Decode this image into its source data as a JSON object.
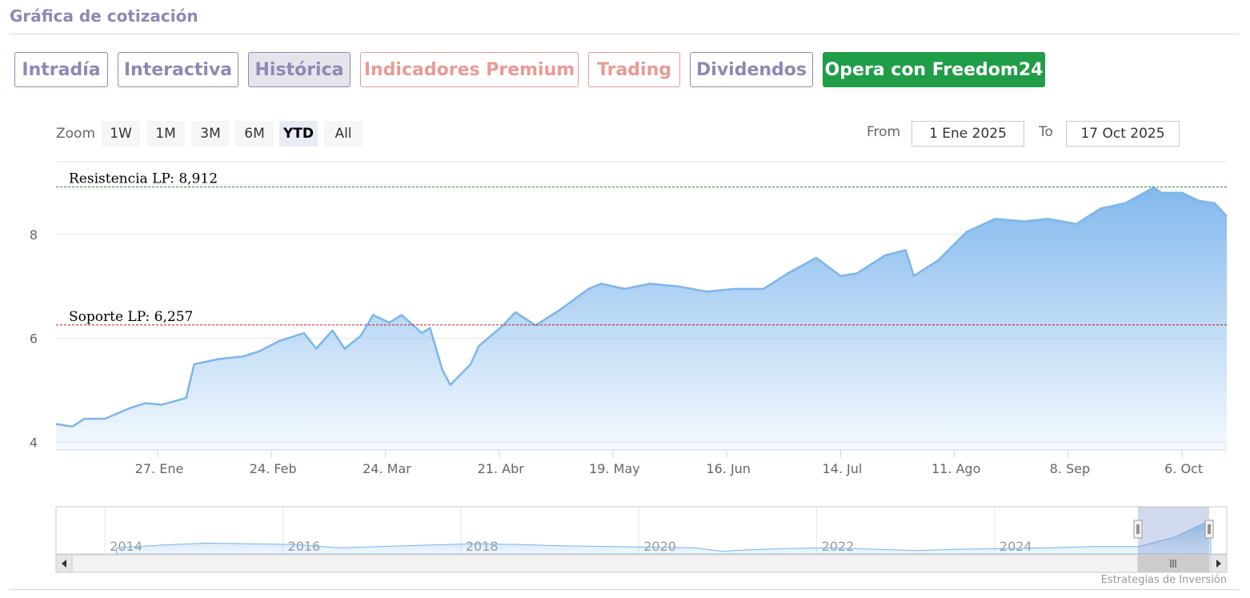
{
  "title": "Gráfica de cotización",
  "tabs": [
    {
      "label": "Intradía",
      "style": "purple"
    },
    {
      "label": "Interactiva",
      "style": "purple"
    },
    {
      "label": "Histórica",
      "style": "active"
    },
    {
      "label": "Indicadores Premium",
      "style": "pink"
    },
    {
      "label": "Trading",
      "style": "pink"
    },
    {
      "label": "Dividendos",
      "style": "purple"
    },
    {
      "label": "Opera con Freedom24",
      "style": "green"
    }
  ],
  "zoom": {
    "label": "Zoom",
    "buttons": [
      "1W",
      "1M",
      "3M",
      "6M",
      "YTD",
      "All"
    ],
    "selected": "YTD"
  },
  "range": {
    "from_label": "From",
    "from_value": "1 Ene 2025",
    "to_label": "To",
    "to_value": "17 Oct 2025"
  },
  "credit": "Estrategias de Inversión",
  "colors": {
    "line": "#7cb5ec",
    "resistance": "#2e7d32",
    "support": "#b71c1c"
  },
  "chart_data": {
    "type": "area",
    "title": "",
    "xlabel": "",
    "ylabel": "",
    "ylim": [
      3.85,
      9.4
    ],
    "y_ticks": [
      4,
      6,
      8
    ],
    "x_tick_labels": [
      "27. Ene",
      "24. Feb",
      "24. Mar",
      "21. Abr",
      "19. May",
      "16. Jun",
      "14. Jul",
      "11. Ago",
      "8. Sep",
      "6. Oct"
    ],
    "x_tick_dates": [
      "2025-01-27",
      "2025-02-24",
      "2025-03-24",
      "2025-04-21",
      "2025-05-19",
      "2025-06-16",
      "2025-07-14",
      "2025-08-11",
      "2025-09-08",
      "2025-10-06"
    ],
    "x_range": [
      "2025-01-02",
      "2025-10-17"
    ],
    "series": [
      {
        "x": [
          "2025-01-02",
          "2025-01-06",
          "2025-01-09",
          "2025-01-14",
          "2025-01-20",
          "2025-01-24",
          "2025-01-28",
          "2025-02-03",
          "2025-02-05",
          "2025-02-11",
          "2025-02-17",
          "2025-02-21",
          "2025-02-26",
          "2025-03-04",
          "2025-03-07",
          "2025-03-11",
          "2025-03-14",
          "2025-03-18",
          "2025-03-21",
          "2025-03-25",
          "2025-03-28",
          "2025-04-02",
          "2025-04-04",
          "2025-04-07",
          "2025-04-09",
          "2025-04-14",
          "2025-04-16",
          "2025-04-22",
          "2025-04-25",
          "2025-04-30",
          "2025-05-06",
          "2025-05-13",
          "2025-05-16",
          "2025-05-22",
          "2025-05-28",
          "2025-06-04",
          "2025-06-11",
          "2025-06-18",
          "2025-06-25",
          "2025-07-01",
          "2025-07-08",
          "2025-07-14",
          "2025-07-18",
          "2025-07-25",
          "2025-07-30",
          "2025-08-01",
          "2025-08-07",
          "2025-08-14",
          "2025-08-21",
          "2025-08-28",
          "2025-09-03",
          "2025-09-10",
          "2025-09-16",
          "2025-09-22",
          "2025-09-29",
          "2025-10-01",
          "2025-10-06",
          "2025-10-10",
          "2025-10-14",
          "2025-10-17"
        ],
        "values": [
          4.35,
          4.3,
          4.45,
          4.45,
          4.65,
          4.75,
          4.72,
          4.85,
          5.5,
          5.6,
          5.65,
          5.75,
          5.95,
          6.1,
          5.8,
          6.15,
          5.8,
          6.05,
          6.45,
          6.3,
          6.45,
          6.1,
          6.2,
          5.4,
          5.1,
          5.5,
          5.85,
          6.25,
          6.5,
          6.25,
          6.55,
          6.95,
          7.05,
          6.95,
          7.05,
          7.0,
          6.9,
          6.95,
          6.95,
          7.25,
          7.55,
          7.2,
          7.25,
          7.6,
          7.7,
          7.2,
          7.5,
          8.05,
          8.3,
          8.25,
          8.3,
          8.2,
          8.5,
          8.6,
          8.9,
          8.8,
          8.8,
          8.65,
          8.6,
          8.35
        ]
      }
    ],
    "plot_lines": [
      {
        "label": "Resistencia LP: 8,912",
        "value": 8.912,
        "color": "#2e7d32"
      },
      {
        "label": "Soporte LP: 6,257",
        "value": 6.257,
        "color": "#b71c1c"
      }
    ],
    "navigator": {
      "x_labels": [
        "2014",
        "2016",
        "2018",
        "2020",
        "2022",
        "2024"
      ],
      "years": [
        2013.5,
        2014,
        2014.5,
        2015,
        2015.5,
        2016,
        2016.5,
        2017,
        2017.5,
        2018,
        2018.5,
        2019,
        2019.5,
        2020,
        2020.3,
        2020.6,
        2021,
        2021.5,
        2022,
        2022.5,
        2023,
        2023.5,
        2024,
        2024.5,
        2025,
        2025.4,
        2025.8
      ],
      "values": [
        4.4,
        4.8,
        5.1,
        5.0,
        4.9,
        4.4,
        4.6,
        4.8,
        5.0,
        4.9,
        4.7,
        4.6,
        4.5,
        4.4,
        3.9,
        4.1,
        4.3,
        4.4,
        4.2,
        4.0,
        4.2,
        4.3,
        4.4,
        4.6,
        4.6,
        6.0,
        8.5
      ],
      "year_range": [
        2013,
        2025.8
      ]
    },
    "grid": true,
    "legend": "none"
  }
}
